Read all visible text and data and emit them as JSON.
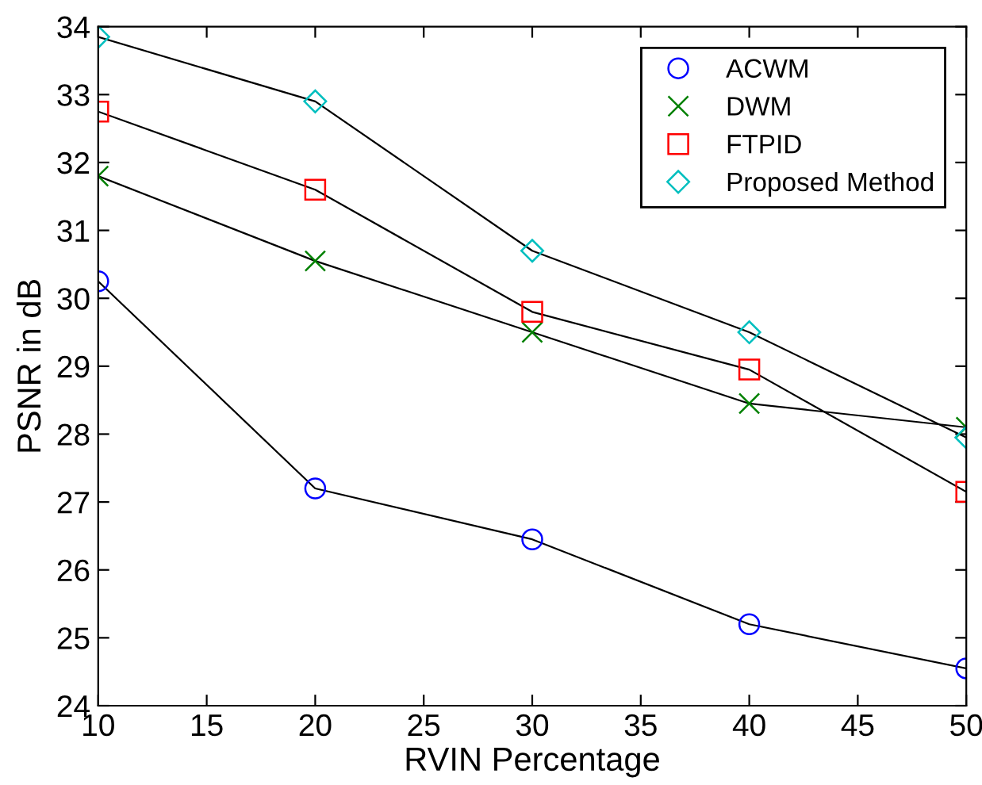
{
  "chart_data": {
    "type": "line",
    "xlabel": "RVIN Percentage",
    "ylabel": "PSNR in dB",
    "x": [
      10,
      20,
      30,
      40,
      50
    ],
    "series": [
      {
        "name": "ACWM",
        "color": "#0000ff",
        "marker": "circle",
        "values": [
          30.25,
          27.2,
          26.45,
          25.2,
          24.55
        ]
      },
      {
        "name": "DWM",
        "color": "#008000",
        "marker": "cross",
        "values": [
          31.8,
          30.55,
          29.5,
          28.45,
          28.1
        ]
      },
      {
        "name": "FTPID",
        "color": "#ff0000",
        "marker": "square",
        "values": [
          32.75,
          31.6,
          29.8,
          28.95,
          27.15
        ]
      },
      {
        "name": "Proposed Method",
        "color": "#00bfbf",
        "marker": "diamond",
        "values": [
          33.85,
          32.9,
          30.7,
          29.5,
          27.95
        ]
      }
    ],
    "xlim": [
      10,
      50
    ],
    "xticks": [
      10,
      15,
      20,
      25,
      30,
      35,
      40,
      45,
      50
    ],
    "ylim": [
      24,
      34
    ],
    "yticks": [
      24,
      25,
      26,
      27,
      28,
      29,
      30,
      31,
      32,
      33,
      34
    ],
    "grid": false,
    "legend": "top right"
  }
}
